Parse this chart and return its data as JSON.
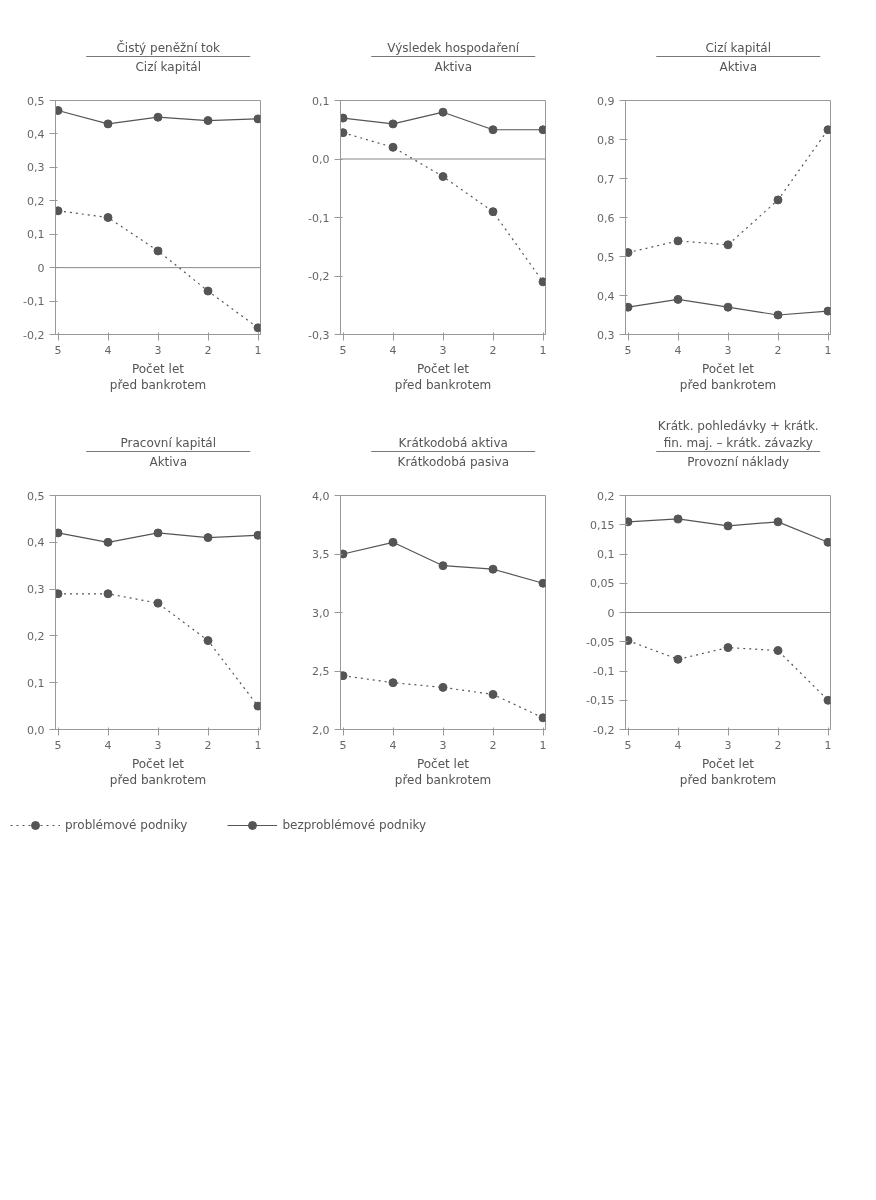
{
  "chart_data": [
    {
      "type": "line",
      "title": "Čistý peněžní tok",
      "subtitle": "Cizí kapitál",
      "xlabel": "Počet let\npřed bankrotem",
      "categories": [
        "5",
        "4",
        "3",
        "2",
        "1"
      ],
      "ylim": [
        -0.2,
        0.5
      ],
      "yticks": [
        {
          "value": -0.2,
          "label": "-0,2"
        },
        {
          "value": -0.1,
          "label": "-0,1"
        },
        {
          "value": 0,
          "label": "0"
        },
        {
          "value": 0.1,
          "label": "0,1"
        },
        {
          "value": 0.2,
          "label": "0,2"
        },
        {
          "value": 0.3,
          "label": "0,3"
        },
        {
          "value": 0.4,
          "label": "0,4"
        },
        {
          "value": 0.5,
          "label": "0,5"
        }
      ],
      "marker": "circle",
      "ref_lines": [
        {
          "axis": "y",
          "value": 0
        }
      ],
      "legend": "bottom",
      "series": [
        {
          "name": "problémové podniky",
          "color": "#555555",
          "line_style": "dotted",
          "values": [
            0.17,
            0.15,
            0.05,
            -0.07,
            -0.18
          ]
        },
        {
          "name": "bezproblémové podniky",
          "color": "#555555",
          "line_style": "solid",
          "values": [
            0.47,
            0.43,
            0.45,
            0.44,
            0.445
          ]
        }
      ]
    },
    {
      "type": "line",
      "title": "Výsledek hospodaření",
      "subtitle": "Aktiva",
      "xlabel": "Počet let\npřed bankrotem",
      "categories": [
        "5",
        "4",
        "3",
        "2",
        "1"
      ],
      "ylim": [
        -0.3,
        0.1
      ],
      "yticks": [
        {
          "value": -0.3,
          "label": "-0,3"
        },
        {
          "value": -0.2,
          "label": "-0,2"
        },
        {
          "value": -0.1,
          "label": "-0,1"
        },
        {
          "value": 0,
          "label": "0,0"
        },
        {
          "value": 0.1,
          "label": "0,1"
        }
      ],
      "marker": "circle",
      "ref_lines": [
        {
          "axis": "y",
          "value": 0
        }
      ],
      "series": [
        {
          "color": "#555555",
          "line_style": "dotted",
          "values": [
            0.045,
            0.02,
            -0.03,
            -0.09,
            -0.21
          ]
        },
        {
          "color": "#555555",
          "line_style": "solid",
          "values": [
            0.07,
            0.06,
            0.08,
            0.05,
            0.05
          ]
        }
      ]
    },
    {
      "type": "line",
      "title": "Cizí kapitál",
      "subtitle": "Aktiva",
      "xlabel": "Počet let\npřed bankrotem",
      "categories": [
        "5",
        "4",
        "3",
        "2",
        "1"
      ],
      "ylim": [
        0.3,
        0.9
      ],
      "yticks": [
        {
          "value": 0.3,
          "label": "0,3"
        },
        {
          "value": 0.4,
          "label": "0,4"
        },
        {
          "value": 0.5,
          "label": "0,5"
        },
        {
          "value": 0.6,
          "label": "0,6"
        },
        {
          "value": 0.7,
          "label": "0,7"
        },
        {
          "value": 0.8,
          "label": "0,8"
        },
        {
          "value": 0.9,
          "label": "0,9"
        }
      ],
      "marker": "circle",
      "series": [
        {
          "color": "#555555",
          "line_style": "dotted",
          "values": [
            0.51,
            0.54,
            0.53,
            0.645,
            0.825
          ]
        },
        {
          "color": "#555555",
          "line_style": "solid",
          "values": [
            0.37,
            0.39,
            0.37,
            0.35,
            0.36
          ]
        }
      ]
    },
    {
      "type": "line",
      "title": "Pracovní kapitál",
      "subtitle": "Aktiva",
      "xlabel": "Počet let\npřed bankrotem",
      "categories": [
        "5",
        "4",
        "3",
        "2",
        "1"
      ],
      "ylim": [
        0,
        0.5
      ],
      "yticks": [
        {
          "value": 0,
          "label": "0,0"
        },
        {
          "value": 0.1,
          "label": "0,1"
        },
        {
          "value": 0.2,
          "label": "0,2"
        },
        {
          "value": 0.3,
          "label": "0,3"
        },
        {
          "value": 0.4,
          "label": "0,4"
        },
        {
          "value": 0.5,
          "label": "0,5"
        }
      ],
      "marker": "circle",
      "series": [
        {
          "color": "#555555",
          "line_style": "dotted",
          "values": [
            0.29,
            0.29,
            0.27,
            0.19,
            0.05
          ]
        },
        {
          "color": "#555555",
          "line_style": "solid",
          "values": [
            0.42,
            0.4,
            0.42,
            0.41,
            0.415
          ]
        }
      ]
    },
    {
      "type": "line",
      "title": "Krátkodobá aktiva",
      "subtitle": "Krátkodobá pasiva",
      "xlabel": "Počet let\npřed bankrotem",
      "categories": [
        "5",
        "4",
        "3",
        "2",
        "1"
      ],
      "ylim": [
        2.0,
        4.0
      ],
      "yticks": [
        {
          "value": 2.0,
          "label": "2,0"
        },
        {
          "value": 2.5,
          "label": "2,5"
        },
        {
          "value": 3.0,
          "label": "3,0"
        },
        {
          "value": 3.5,
          "label": "3,5"
        },
        {
          "value": 4.0,
          "label": "4,0"
        }
      ],
      "marker": "circle",
      "series": [
        {
          "color": "#555555",
          "line_style": "dotted",
          "values": [
            2.46,
            2.4,
            2.36,
            2.3,
            2.1
          ]
        },
        {
          "color": "#555555",
          "line_style": "solid",
          "values": [
            3.5,
            3.6,
            3.4,
            3.37,
            3.25
          ]
        }
      ]
    },
    {
      "type": "line",
      "title": "Krátk. pohledávky + krátk.\nfin. maj. – krátk. závazky",
      "subtitle": "Provozní náklady",
      "xlabel": "Počet let\npřed bankrotem",
      "categories": [
        "5",
        "4",
        "3",
        "2",
        "1"
      ],
      "ylim": [
        -0.2,
        0.2
      ],
      "yticks": [
        {
          "value": -0.2,
          "label": "-0,2"
        },
        {
          "value": -0.15,
          "label": "-0,15"
        },
        {
          "value": -0.1,
          "label": "-0,1"
        },
        {
          "value": -0.05,
          "label": "-0,05"
        },
        {
          "value": 0,
          "label": "0"
        },
        {
          "value": 0.05,
          "label": "0,05"
        },
        {
          "value": 0.1,
          "label": "0,1"
        },
        {
          "value": 0.15,
          "label": "0,15"
        },
        {
          "value": 0.2,
          "label": "0,2"
        }
      ],
      "marker": "circle",
      "ref_lines": [
        {
          "axis": "y",
          "value": 0
        }
      ],
      "series": [
        {
          "color": "#555555",
          "line_style": "dotted",
          "values": [
            -0.048,
            -0.08,
            -0.06,
            -0.065,
            -0.15
          ]
        },
        {
          "color": "#555555",
          "line_style": "solid",
          "values": [
            0.155,
            0.16,
            0.148,
            0.155,
            0.12
          ]
        }
      ]
    }
  ]
}
